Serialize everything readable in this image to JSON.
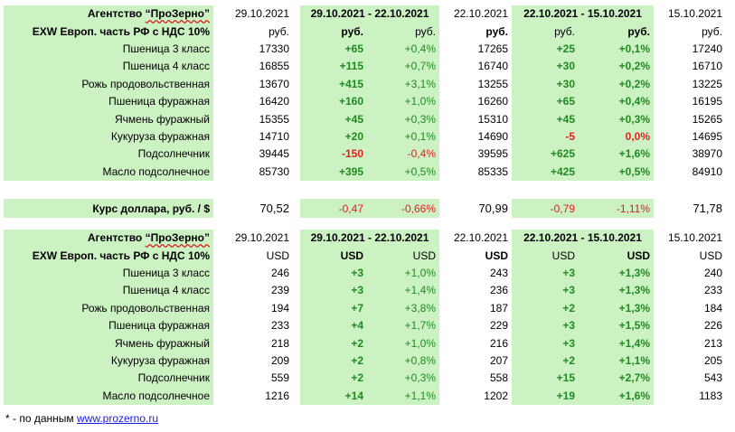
{
  "agency": "Агентство “ПроЗерно”",
  "agency_word": "Агентство",
  "agency_name": "“ПроЗерно”",
  "date_cur": "29.10.2021",
  "period1": "29.10.2021 - 22.10.2021",
  "date_prev1": "22.10.2021",
  "period2": "22.10.2021 - 15.10.2021",
  "date_prev2": "15.10.2021",
  "basis_label": "EXW Европ. часть РФ с НДС 10%",
  "rub_table": {
    "unit": "руб.",
    "rows": [
      {
        "name": "Пшеница 3 класс",
        "v1": "17330",
        "d1": "+65",
        "p1": "+0,4%",
        "v2": "17265",
        "d2": "+25",
        "p2": "+0,1%",
        "v3": "17240"
      },
      {
        "name": "Пшеница 4 класс",
        "v1": "16855",
        "d1": "+115",
        "p1": "+0,7%",
        "v2": "16740",
        "d2": "+30",
        "p2": "+0,2%",
        "v3": "16710"
      },
      {
        "name": "Рожь продовольственная",
        "v1": "13670",
        "d1": "+415",
        "p1": "+3,1%",
        "v2": "13255",
        "d2": "+30",
        "p2": "+0,2%",
        "v3": "13225"
      },
      {
        "name": "Пшеница фуражная",
        "v1": "16420",
        "d1": "+160",
        "p1": "+1,0%",
        "v2": "16260",
        "d2": "+65",
        "p2": "+0,4%",
        "v3": "16195"
      },
      {
        "name": "Ячмень фуражный",
        "v1": "15355",
        "d1": "+45",
        "p1": "+0,3%",
        "v2": "15310",
        "d2": "+45",
        "p2": "+0,3%",
        "v3": "15265"
      },
      {
        "name": "Кукуруза фуражная",
        "v1": "14710",
        "d1": "+20",
        "p1": "+0,1%",
        "v2": "14690",
        "d2": "-5",
        "p2": "0,0%",
        "v3": "14695"
      },
      {
        "name": "Подсолнечник",
        "v1": "39445",
        "d1": "-150",
        "p1": "-0,4%",
        "v2": "39595",
        "d2": "+625",
        "p2": "+1,6%",
        "v3": "38970"
      },
      {
        "name": "Масло подсолнечное",
        "v1": "85730",
        "d1": "+395",
        "p1": "+0,5%",
        "v2": "85335",
        "d2": "+425",
        "p2": "+0,5%",
        "v3": "84910"
      }
    ]
  },
  "rate": {
    "label": "Курс доллара, руб. / $",
    "v1": "70,52",
    "d1": "-0,47",
    "p1": "-0,66%",
    "v2": "70,99",
    "d2": "-0,79",
    "p2": "-1,11%",
    "v3": "71,78"
  },
  "usd_table": {
    "unit": "USD",
    "rows": [
      {
        "name": "Пшеница 3 класс",
        "v1": "246",
        "d1": "+3",
        "p1": "+1,0%",
        "v2": "243",
        "d2": "+3",
        "p2": "+1,3%",
        "v3": "240"
      },
      {
        "name": "Пшеница 4 класс",
        "v1": "239",
        "d1": "+3",
        "p1": "+1,4%",
        "v2": "236",
        "d2": "+3",
        "p2": "+1,3%",
        "v3": "233"
      },
      {
        "name": "Рожь продовольственная",
        "v1": "194",
        "d1": "+7",
        "p1": "+3,8%",
        "v2": "187",
        "d2": "+2",
        "p2": "+1,3%",
        "v3": "184"
      },
      {
        "name": "Пшеница фуражная",
        "v1": "233",
        "d1": "+4",
        "p1": "+1,7%",
        "v2": "229",
        "d2": "+3",
        "p2": "+1,5%",
        "v3": "226"
      },
      {
        "name": "Ячмень фуражный",
        "v1": "218",
        "d1": "+2",
        "p1": "+1,0%",
        "v2": "216",
        "d2": "+3",
        "p2": "+1,4%",
        "v3": "213"
      },
      {
        "name": "Кукуруза фуражная",
        "v1": "209",
        "d1": "+2",
        "p1": "+0,8%",
        "v2": "207",
        "d2": "+2",
        "p2": "+1,1%",
        "v3": "205"
      },
      {
        "name": "Подсолнечник",
        "v1": "559",
        "d1": "+2",
        "p1": "+0,3%",
        "v2": "558",
        "d2": "+15",
        "p2": "+2,7%",
        "v3": "543"
      },
      {
        "name": "Масло подсолнечное",
        "v1": "1216",
        "d1": "+14",
        "p1": "+1,1%",
        "v2": "1202",
        "d2": "+19",
        "p2": "+1,6%",
        "v3": "1183"
      }
    ]
  },
  "footnote_prefix": "* - по данным ",
  "footnote_link": "www.prozerno.ru",
  "colors": {
    "green_fill": "#ccf2c4",
    "positive": "#1f8a1f",
    "negative": "#e02020",
    "link": "#1a1ae0"
  }
}
